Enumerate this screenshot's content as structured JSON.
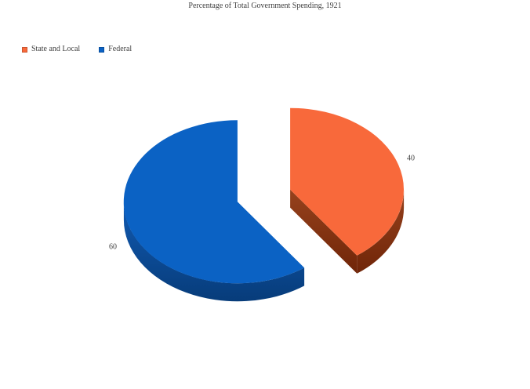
{
  "chart_data": {
    "type": "pie",
    "style": "3d-exploded-pie",
    "title": "Percentage of Total Government Spending, 1921",
    "start_angle_deg": 0,
    "direction": "clockwise",
    "total": 100,
    "legend_position": "top-left",
    "slices": [
      {
        "label": "State and Local",
        "value": 40,
        "color": "#F8693B",
        "side_color_top": "#96421D",
        "side_color_bottom": "#702508"
      },
      {
        "label": "Federal",
        "value": 60,
        "color": "#0B62C4",
        "side_color_top": "#115AB2",
        "side_color_bottom": "#073C7A"
      }
    ],
    "text_color": "#3F3F3F",
    "background_color": "#FFFFFF"
  }
}
